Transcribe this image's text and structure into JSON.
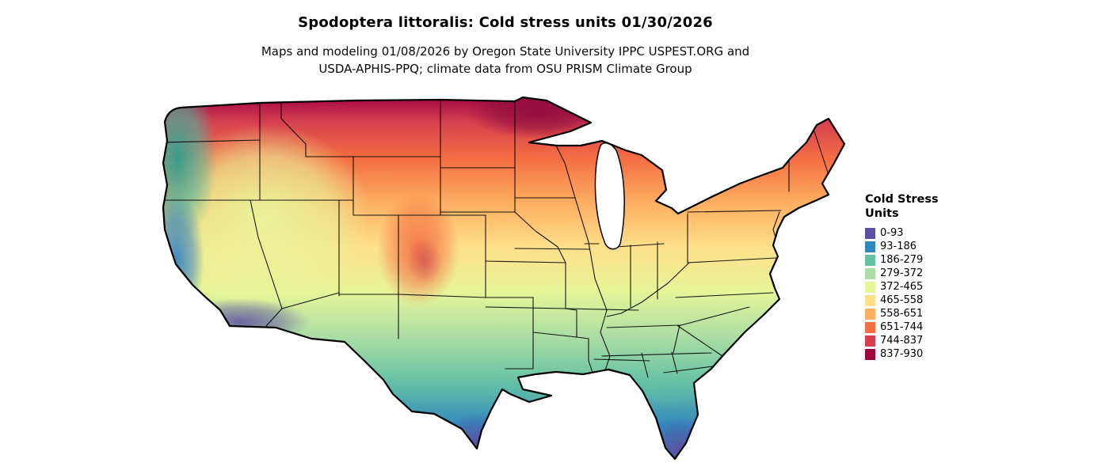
{
  "header": {
    "title": "Spodoptera littoralis: Cold stress units 01/30/2026",
    "subtitle_line1": "Maps and modeling 01/08/2026 by Oregon State University IPPC USPEST.ORG and",
    "subtitle_line2": "USDA-APHIS-PPQ; climate data from OSU PRISM Climate Group"
  },
  "legend": {
    "title_line1": "Cold Stress",
    "title_line2": "Units",
    "items": [
      {
        "label": "0-93",
        "color": "#5e4fa2"
      },
      {
        "label": "93-186",
        "color": "#3288bd"
      },
      {
        "label": "186-279",
        "color": "#66c2a5"
      },
      {
        "label": "279-372",
        "color": "#abdda4"
      },
      {
        "label": "372-465",
        "color": "#e6f598"
      },
      {
        "label": "465-558",
        "color": "#fee08b"
      },
      {
        "label": "558-651",
        "color": "#fdae61"
      },
      {
        "label": "651-744",
        "color": "#f46d43"
      },
      {
        "label": "744-837",
        "color": "#d53e4f"
      },
      {
        "label": "837-930",
        "color": "#9e0142"
      }
    ]
  },
  "map": {
    "region": "Contiguous United States",
    "kind": "cold stress units raster"
  }
}
